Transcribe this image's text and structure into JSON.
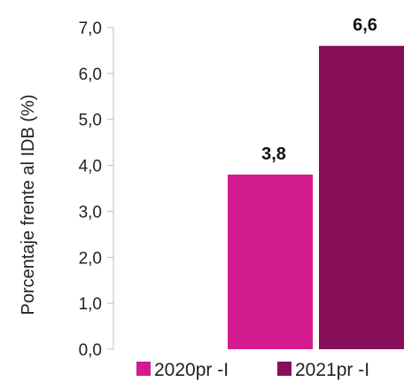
{
  "chart_data": {
    "type": "bar",
    "title": "",
    "xlabel": "",
    "ylabel": "Porcentaje frente al IDB (%)",
    "ylim": [
      0,
      7
    ],
    "y_ticks": [
      "0,0",
      "1,0",
      "2,0",
      "3,0",
      "4,0",
      "5,0",
      "6,0",
      "7,0"
    ],
    "grid": false,
    "legend_position": "bottom",
    "series": [
      {
        "name": "2020pr -I",
        "value": 3.8,
        "label": "3,8",
        "color": "#d21c8e"
      },
      {
        "name": "2021pr -I",
        "value": 6.6,
        "label": "6,6",
        "color": "#870f5a"
      }
    ]
  }
}
